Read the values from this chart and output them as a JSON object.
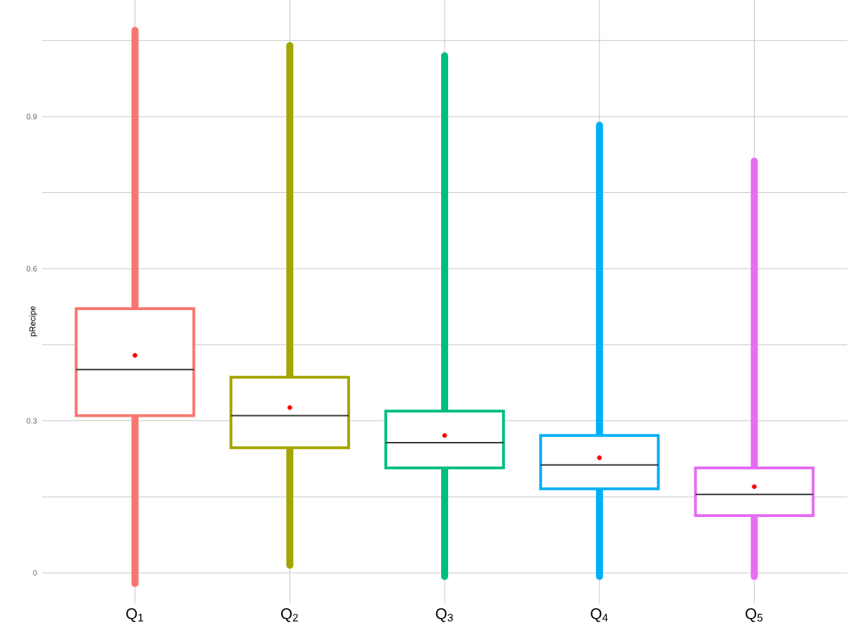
{
  "chart_data": {
    "type": "box",
    "ylabel": "pRecipe",
    "categories": [
      "Q$_{1}$",
      "Q$_{2}$",
      "Q$_{3}$",
      "Q$_{4}$",
      "Q$_{5}$"
    ],
    "colors": [
      "#f8766d",
      "#a3a500",
      "#00bf7d",
      "#00b0f6",
      "#e76bf3"
    ],
    "boxes": [
      {
        "low": -0.021,
        "q1": 0.31,
        "median": 0.401,
        "q3": 0.521,
        "high": 1.07,
        "mean": 0.429
      },
      {
        "low": 0.015,
        "q1": 0.247,
        "median": 0.31,
        "q3": 0.386,
        "high": 1.04,
        "mean": 0.326
      },
      {
        "low": -0.007,
        "q1": 0.207,
        "median": 0.257,
        "q3": 0.319,
        "high": 1.02,
        "mean": 0.271
      },
      {
        "low": -0.007,
        "q1": 0.166,
        "median": 0.213,
        "q3": 0.271,
        "high": 0.883,
        "mean": 0.227
      },
      {
        "low": -0.007,
        "q1": 0.113,
        "median": 0.155,
        "q3": 0.207,
        "high": 0.812,
        "mean": 0.17
      }
    ],
    "ylim": [
      -0.06,
      1.13
    ],
    "yticks": [
      0,
      {
        "value": 0.15,
        "label": null
      },
      0.3,
      {
        "value": 0.45,
        "label": null
      },
      0.6,
      {
        "value": 0.75,
        "label": null
      },
      0.9,
      {
        "value": 1.05,
        "label": null
      }
    ],
    "grid": true
  }
}
